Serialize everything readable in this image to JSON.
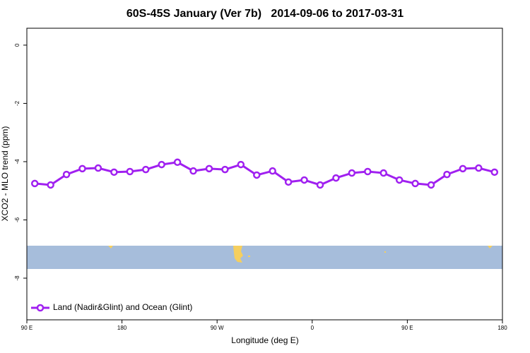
{
  "chart_data": {
    "type": "line",
    "title": "60S-45S January (Ver 7b)   2014-09-06 to 2017-03-31",
    "x_label": "Longitude (deg E)",
    "y_label": "XCO2 - MLO trend (ppm)",
    "x": [
      97.5,
      112.5,
      127.5,
      142.5,
      157.5,
      172.5,
      187.5,
      202.5,
      217.5,
      232.5,
      247.5,
      262.5,
      277.5,
      292.5,
      307.5,
      322.5,
      337.5,
      352.5,
      367.5,
      382.5,
      397.5,
      412.5,
      427.5,
      442.5,
      457.5,
      472.5,
      487.5,
      502.5,
      517.5,
      532.5
    ],
    "series": [
      {
        "name": "Land (Nadir&Glint) and Ocean (Glint)",
        "color": "#a020f0",
        "values": [
          -4.75,
          -4.8,
          -4.44,
          -4.24,
          -4.22,
          -4.36,
          -4.34,
          -4.27,
          -4.1,
          -4.02,
          -4.32,
          -4.24,
          -4.27,
          -4.1,
          -4.46,
          -4.32,
          -4.7,
          -4.63,
          -4.8,
          -4.56,
          -4.39,
          -4.34,
          -4.39,
          -4.63,
          -4.75,
          -4.8,
          -4.44,
          -4.24,
          -4.22,
          -4.36
        ]
      }
    ],
    "xlim": [
      90,
      540
    ],
    "ylim": [
      -9.43,
      0.58
    ],
    "xticks": [
      {
        "value": 90,
        "label": "90 E"
      },
      {
        "value": 180,
        "label": "180"
      },
      {
        "value": 270,
        "label": "90 W"
      },
      {
        "value": 360,
        "label": "0"
      },
      {
        "value": 450,
        "label": "90 E"
      },
      {
        "value": 540,
        "label": "180"
      }
    ],
    "yticks": [
      0,
      -2,
      -4,
      -6,
      -8
    ],
    "legend": "bottomleft"
  }
}
